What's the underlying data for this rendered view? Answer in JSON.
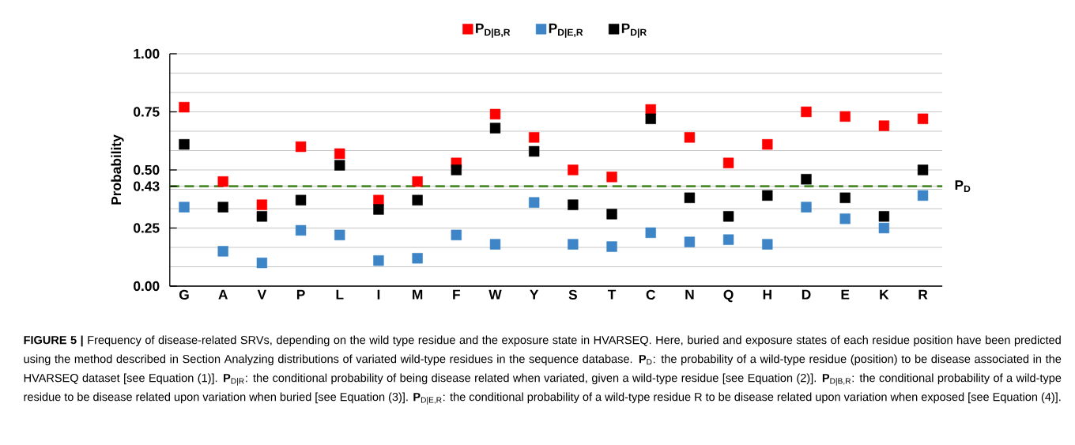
{
  "chart_data": {
    "type": "scatter",
    "categories": [
      "G",
      "A",
      "V",
      "P",
      "L",
      "I",
      "M",
      "F",
      "W",
      "Y",
      "S",
      "T",
      "C",
      "N",
      "Q",
      "H",
      "D",
      "E",
      "K",
      "R"
    ],
    "series": [
      {
        "name": "P$_{D|B,R}$",
        "color": "#ff0000",
        "values": [
          0.77,
          0.45,
          0.35,
          0.6,
          0.57,
          0.37,
          0.45,
          0.53,
          0.74,
          0.64,
          0.5,
          0.47,
          0.76,
          0.64,
          0.53,
          0.61,
          0.75,
          0.73,
          0.69,
          0.72
        ]
      },
      {
        "name": "P$_{D|E,R}$",
        "color": "#3d85c6",
        "values": [
          0.34,
          0.15,
          0.1,
          0.24,
          0.22,
          0.11,
          0.12,
          0.22,
          0.18,
          0.36,
          0.18,
          0.17,
          0.23,
          0.19,
          0.2,
          0.18,
          0.34,
          0.29,
          0.25,
          0.39
        ]
      },
      {
        "name": "P$_{D|R}$",
        "color": "#000000",
        "values": [
          0.61,
          0.34,
          0.3,
          0.37,
          0.52,
          0.33,
          0.37,
          0.5,
          0.68,
          0.58,
          0.35,
          0.31,
          0.72,
          0.38,
          0.3,
          0.39,
          0.46,
          0.38,
          0.3,
          0.5
        ]
      }
    ],
    "ylabel": "Probability",
    "ylim": [
      0,
      1
    ],
    "yticks": [
      {
        "value": 0,
        "label": "0.00"
      },
      {
        "value": 0.0833,
        "label": null
      },
      {
        "value": 0.1667,
        "label": null
      },
      0.25,
      {
        "value": 0.3333,
        "label": null
      },
      {
        "value": 0.4167,
        "label": null
      },
      0.43,
      {
        "value": 0.5,
        "label": "0.50"
      },
      {
        "value": 0.5833,
        "label": null
      },
      {
        "value": 0.6667,
        "label": null
      },
      0.75,
      {
        "value": 0.8333,
        "label": null
      },
      {
        "value": 0.9167,
        "label": null
      },
      {
        "value": 1.0,
        "label": "1.00"
      }
    ],
    "grid": "y",
    "legend": "top",
    "marker": "square",
    "ref_lines": [
      {
        "axis": "y",
        "value": 0.43,
        "label": "P$_{D}$",
        "color": "#4a8a2a",
        "line_style": "dashed"
      }
    ],
    "annotations": [
      "**FIGURE 5 |** Frequency of disease-related SRVs, depending on the wild type residue and the exposure state in HVARSEQ. Here, buried and exposure states of each residue position have been predicted using the method described in Section Analyzing distributions of variated wild-type residues in the sequence database. **P**$_{D}$: the probability of a wild-type residue (position) to be disease associated in the HVARSEQ dataset [see Equation (1)]. **P**$_{D|R}$: the conditional probability of being disease related when variated, given a wild-type residue [see Equation (2)]. **P**$_{D|B,R}$: the conditional probability of a wild-type residue to be disease related upon variation when buried [see Equation (3)]. **P**$_{D|E,R}$: the conditional probability of a wild-type residue R to be disease related upon variation when exposed [see Equation (4)]."
    ]
  }
}
